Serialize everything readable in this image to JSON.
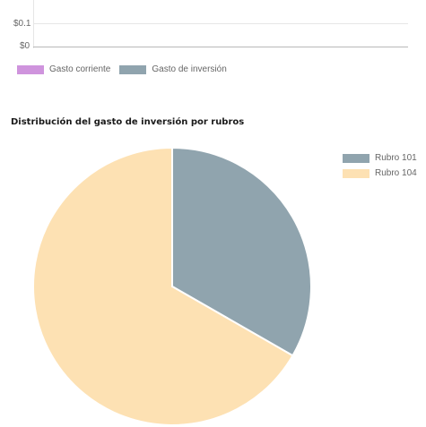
{
  "top_chart": {
    "y_ticks": [
      "$0.1",
      "$0"
    ],
    "legend": [
      {
        "label": "Gasto corriente",
        "color": "#cf94dd"
      },
      {
        "label": "Gasto de inversión",
        "color": "#90a4ae"
      }
    ]
  },
  "pie_section": {
    "title": "Distribución del gasto de inversión por rubros"
  },
  "chart_data": [
    {
      "type": "bar",
      "title": "",
      "xlabel": "",
      "ylabel": "",
      "y_tick_labels": [
        "$0.1",
        "$0"
      ],
      "grid": true,
      "legend_placement": "bottom-left",
      "series": [
        {
          "name": "Gasto corriente",
          "color": "#cf94dd",
          "values": []
        },
        {
          "name": "Gasto de inversión",
          "color": "#90a4ae",
          "values": []
        }
      ]
    },
    {
      "type": "pie",
      "title": "Distribución del gasto de inversión por rubros",
      "legend_placement": "top-right",
      "slices": [
        {
          "label": "Rubro 101",
          "value": 33.3,
          "color": "#90a4ae"
        },
        {
          "label": "Rubro 104",
          "value": 66.7,
          "color": "#fde1b3"
        }
      ]
    }
  ]
}
